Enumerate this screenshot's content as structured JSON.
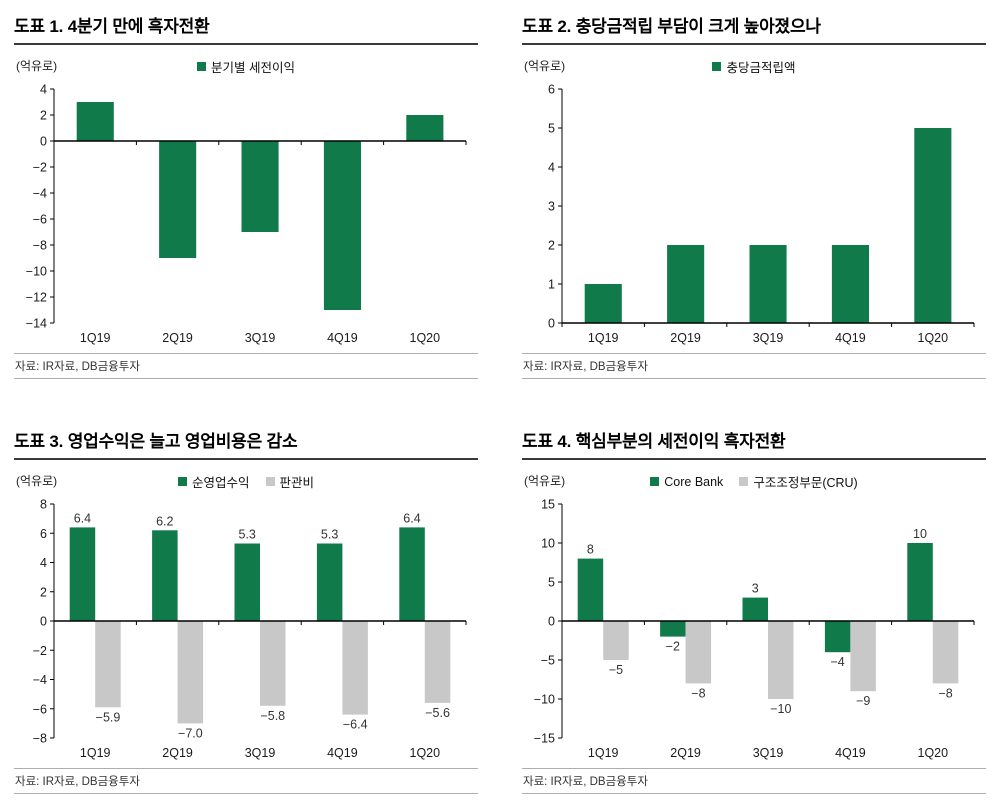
{
  "chart_data": [
    {
      "type": "bar",
      "title": "도표 1. 4분기 만에 흑자전환",
      "unit_label": "(억유로)",
      "source": "자료: IR자료, DB금융투자",
      "categories": [
        "1Q19",
        "2Q19",
        "3Q19",
        "4Q19",
        "1Q20"
      ],
      "series": [
        {
          "name": "분기별 세전이익",
          "color": "#117a4b",
          "values": [
            3,
            -9,
            -7,
            -13,
            2
          ]
        }
      ],
      "ylim": [
        -14,
        4
      ],
      "ytick_step": 2,
      "show_value_labels": false,
      "grid": false,
      "legend_position": "top-center"
    },
    {
      "type": "bar",
      "title": "도표 2. 충당금적립 부담이 크게 높아졌으나",
      "unit_label": "(억유로)",
      "source": "자료: IR자료, DB금융투자",
      "categories": [
        "1Q19",
        "2Q19",
        "3Q19",
        "4Q19",
        "1Q20"
      ],
      "series": [
        {
          "name": "충당금적립액",
          "color": "#117a4b",
          "values": [
            1,
            2,
            2,
            2,
            5
          ]
        }
      ],
      "ylim": [
        0,
        6
      ],
      "ytick_step": 1,
      "show_value_labels": false,
      "grid": false,
      "legend_position": "top-center"
    },
    {
      "type": "bar",
      "title": "도표 3. 영업수익은 늘고 영업비용은 감소",
      "unit_label": "(억유로)",
      "source": "자료: IR자료, DB금융투자",
      "categories": [
        "1Q19",
        "2Q19",
        "3Q19",
        "4Q19",
        "1Q20"
      ],
      "series": [
        {
          "name": "순영업수익",
          "color": "#117a4b",
          "values": [
            6.4,
            6.2,
            5.3,
            5.3,
            6.4
          ],
          "labels": [
            "6.4",
            "6.2",
            "5.3",
            "5.3",
            "6.4"
          ]
        },
        {
          "name": "판관비",
          "color": "#c8c8c8",
          "values": [
            -5.9,
            -7.0,
            -5.8,
            -6.4,
            -5.6
          ],
          "labels": [
            "−5.9",
            "−7.0",
            "−5.8",
            "−6.4",
            "−5.6"
          ]
        }
      ],
      "ylim": [
        -8,
        8
      ],
      "ytick_step": 2,
      "show_value_labels": true,
      "grid": false,
      "legend_position": "top-center"
    },
    {
      "type": "bar",
      "title": "도표 4. 핵심부분의 세전이익 흑자전환",
      "unit_label": "(억유로)",
      "source": "자료: IR자료, DB금융투자",
      "categories": [
        "1Q19",
        "2Q19",
        "3Q19",
        "4Q19",
        "1Q20"
      ],
      "series": [
        {
          "name": "Core Bank",
          "color": "#117a4b",
          "values": [
            8,
            -2,
            3,
            -4,
            10
          ],
          "labels": [
            "8",
            "−2",
            "3",
            "−4",
            "10"
          ]
        },
        {
          "name": "구조조정부문(CRU)",
          "color": "#c8c8c8",
          "values": [
            -5,
            -8,
            -10,
            -9,
            -8
          ],
          "labels": [
            "−5",
            "−8",
            "−10",
            "−9",
            "−8"
          ]
        }
      ],
      "ylim": [
        -15,
        15
      ],
      "ytick_step": 5,
      "show_value_labels": true,
      "grid": false,
      "legend_position": "top-center"
    }
  ]
}
